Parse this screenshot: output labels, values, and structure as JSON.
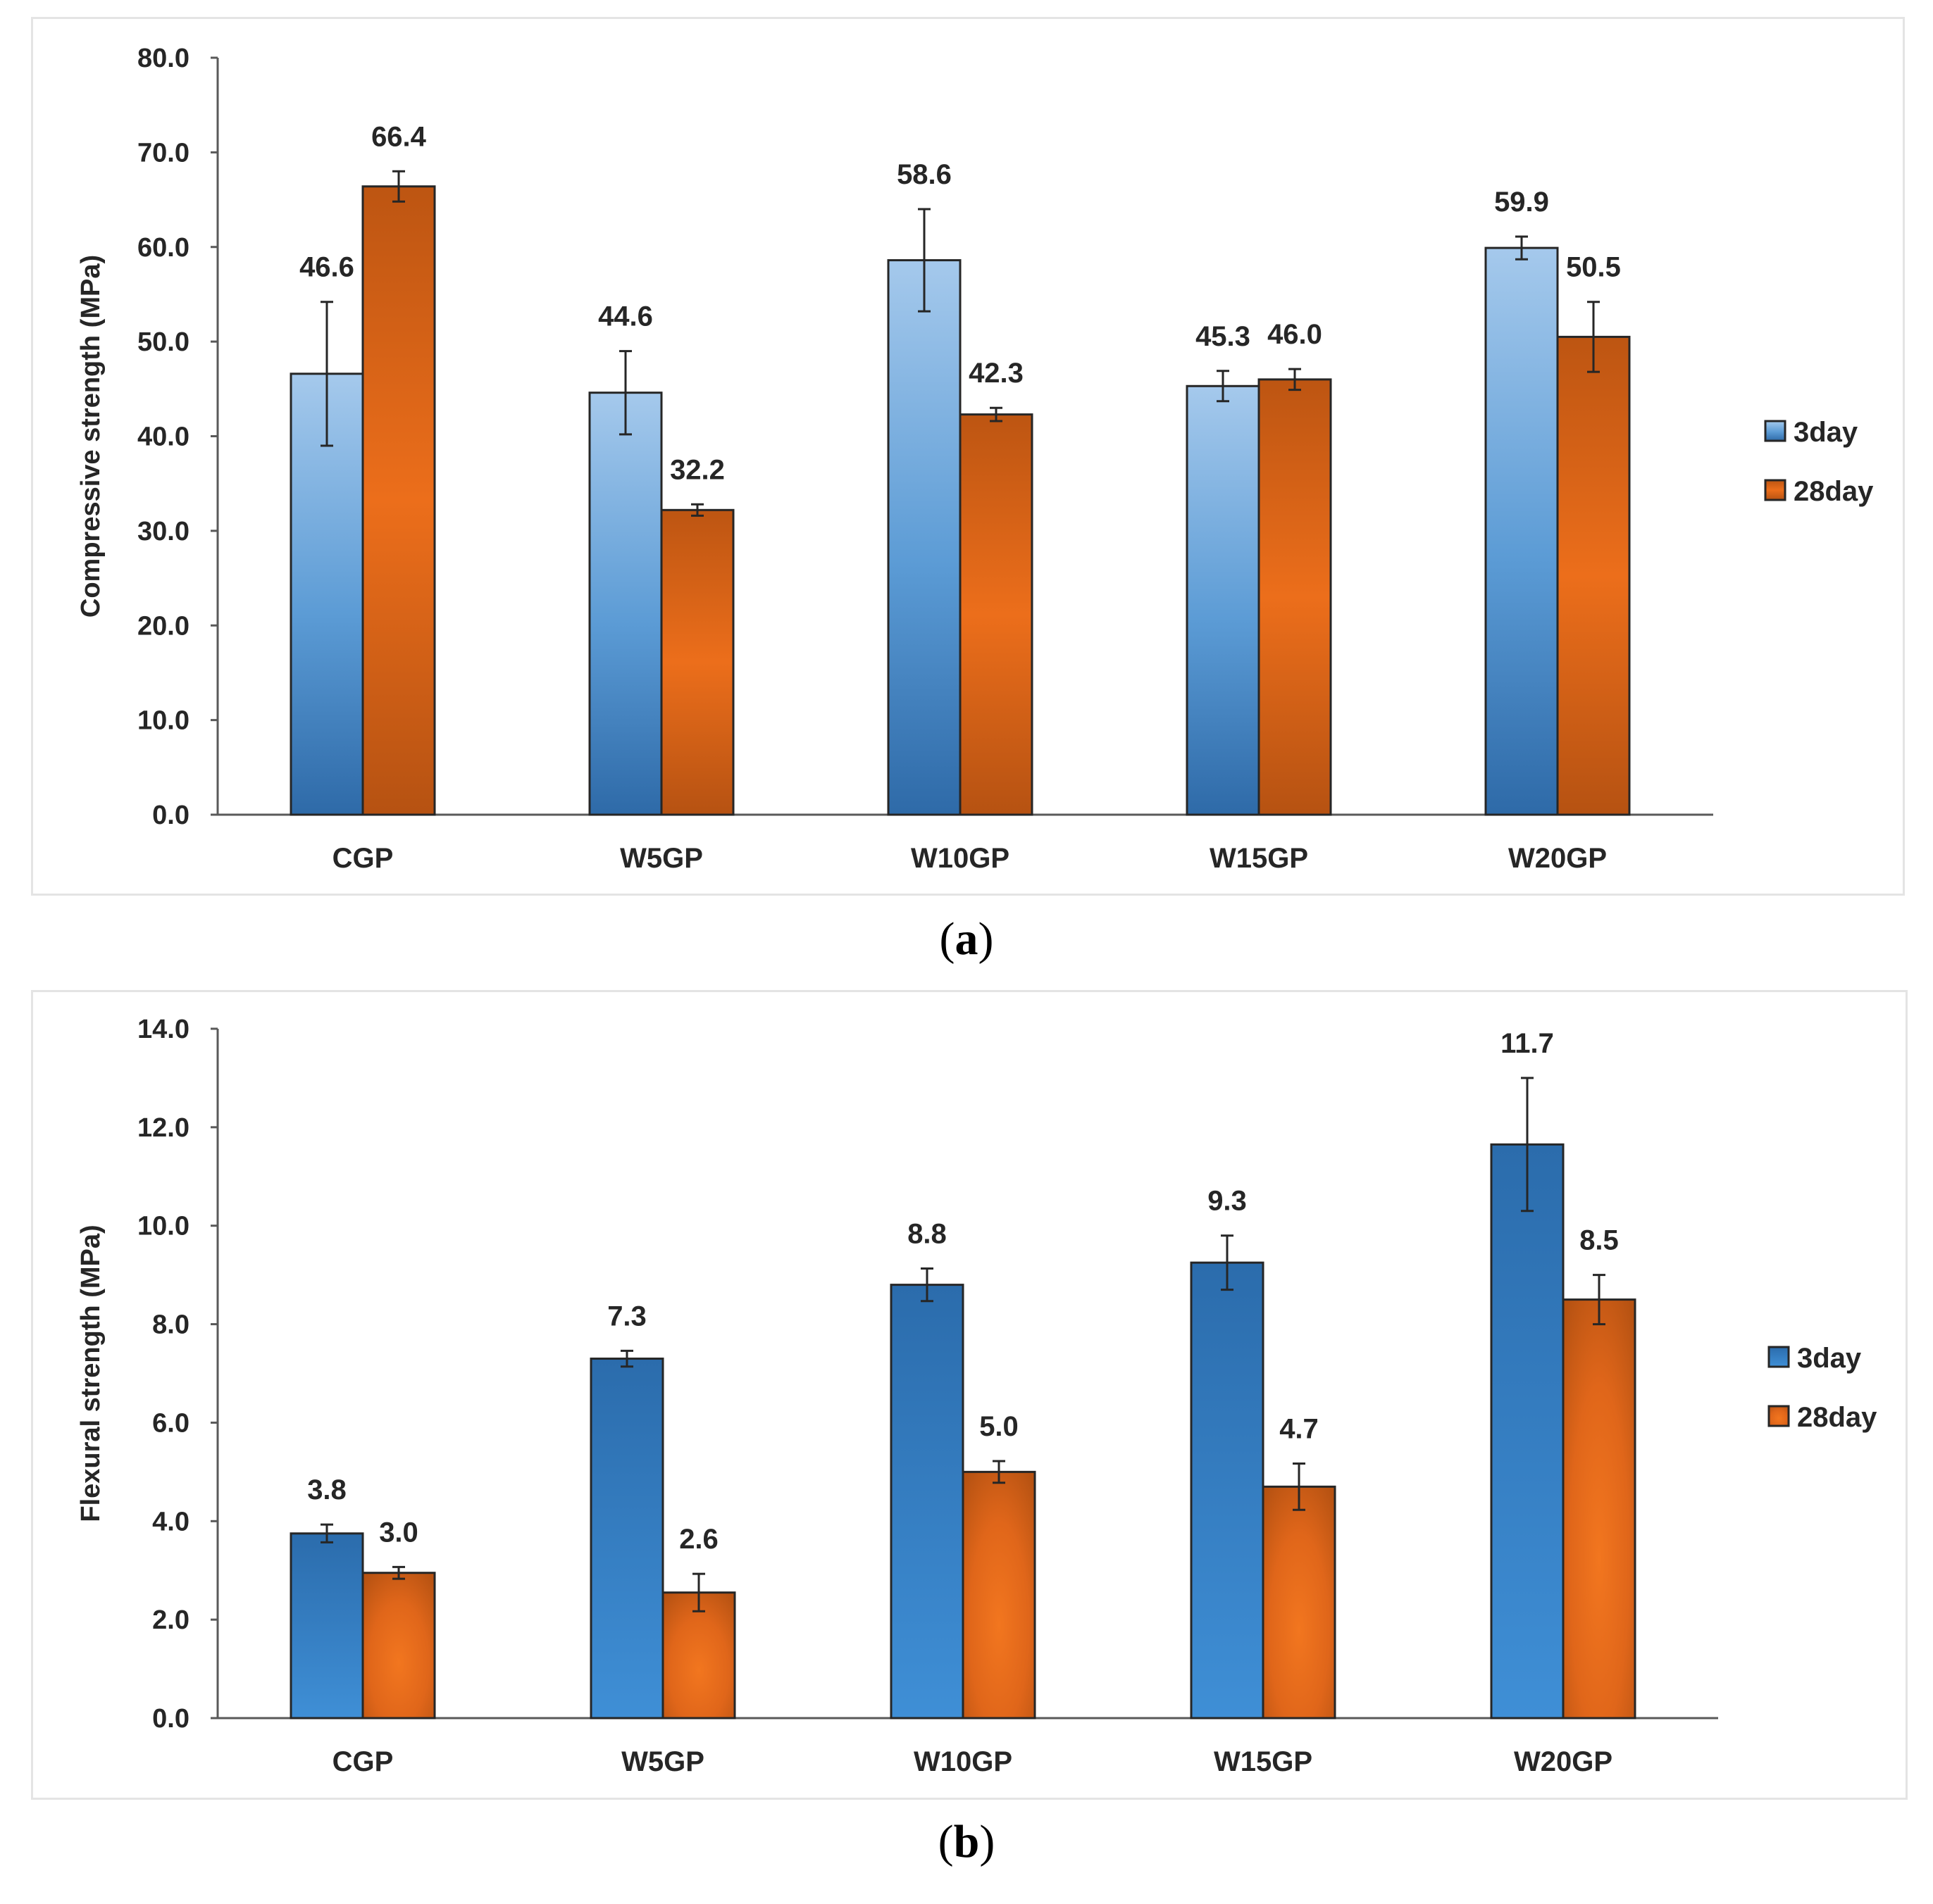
{
  "chart_data": [
    {
      "type": "bar",
      "panel": "a",
      "categories": [
        "CGP",
        "W5GP",
        "W10GP",
        "W15GP",
        "W20GP"
      ],
      "series": [
        {
          "name": "3day",
          "values": [
            46.6,
            44.6,
            58.6,
            45.3,
            59.9
          ],
          "errors": [
            7.6,
            4.4,
            5.4,
            1.6,
            1.2
          ],
          "labels": [
            "46.6",
            "44.6",
            "58.6",
            "45.3",
            "59.9"
          ],
          "color": "#5b9bd5"
        },
        {
          "name": "28day",
          "values": [
            66.4,
            32.2,
            42.3,
            46.0,
            50.5
          ],
          "errors": [
            1.6,
            0.6,
            0.7,
            1.1,
            3.7
          ],
          "labels": [
            "66.4",
            "32.2",
            "42.3",
            "46.0",
            "50.5"
          ],
          "color": "#e36c1a"
        }
      ],
      "ylabel": "Compressive strength (MPa)",
      "ylim": [
        0,
        80
      ],
      "yticks": [
        "0.0",
        "10.0",
        "20.0",
        "30.0",
        "40.0",
        "50.0",
        "60.0",
        "70.0",
        "80.0"
      ],
      "legend": "right",
      "grid": false
    },
    {
      "type": "bar",
      "panel": "b",
      "categories": [
        "CGP",
        "W5GP",
        "W10GP",
        "W15GP",
        "W20GP"
      ],
      "series": [
        {
          "name": "3day",
          "values": [
            3.75,
            7.3,
            8.8,
            9.25,
            11.65
          ],
          "errors": [
            0.18,
            0.16,
            0.33,
            0.55,
            1.35
          ],
          "labels": [
            "3.8",
            "7.3",
            "8.8",
            "9.3",
            "11.7"
          ],
          "color": "#2e75b6"
        },
        {
          "name": "28day",
          "values": [
            2.95,
            2.55,
            5.0,
            4.7,
            8.5
          ],
          "errors": [
            0.12,
            0.38,
            0.22,
            0.47,
            0.5
          ],
          "labels": [
            "3.0",
            "2.6",
            "5.0",
            "4.7",
            "8.5"
          ],
          "color": "#e36c1a"
        }
      ],
      "ylabel": "Flexural strength (MPa)",
      "ylim": [
        0,
        14
      ],
      "yticks": [
        "0.0",
        "2.0",
        "4.0",
        "6.0",
        "8.0",
        "10.0",
        "12.0",
        "14.0"
      ],
      "legend": "right",
      "grid": false
    }
  ],
  "captions": [
    {
      "open": "(",
      "letter": "a",
      "close": ")"
    },
    {
      "open": "(",
      "letter": "b",
      "close": ")"
    }
  ]
}
